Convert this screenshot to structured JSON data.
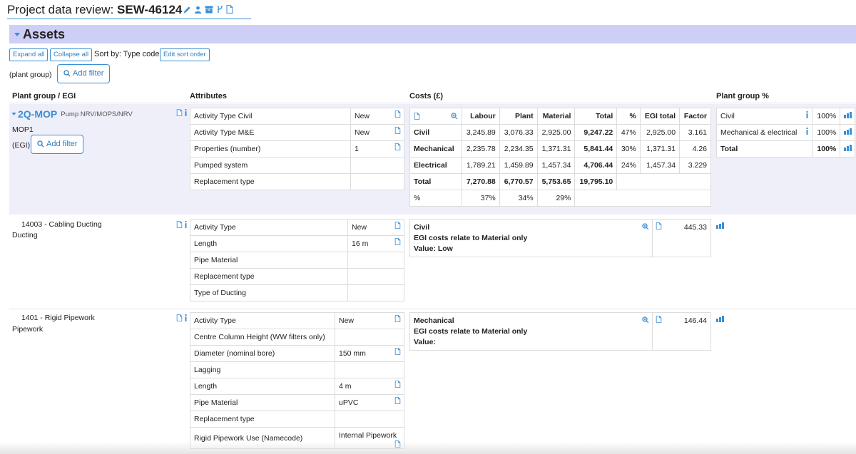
{
  "header": {
    "title_label": "Project data review:",
    "project_code": "SEW-46124",
    "icons": [
      "pencil-icon",
      "user-icon",
      "archive-icon",
      "branch-icon",
      "document-icon"
    ]
  },
  "section": {
    "title": "Assets"
  },
  "toolbar": {
    "expand_all": "Expand all",
    "collapse_all": "Collapse all",
    "sort_by_label": "Sort by: Type code",
    "edit_sort_order": "Edit sort order",
    "plant_group_filter_label": "(plant group)",
    "add_filter": "Add filter"
  },
  "columns": {
    "plant_group_egi": "Plant group / EGI",
    "attributes": "Attributes",
    "costs": "Costs (£)",
    "plant_group_pct": "Plant group %"
  },
  "groups": [
    {
      "code": "2Q-MOP",
      "description": "Pump NRV/MOPS/NRV",
      "sub_label": "MOP1",
      "egi_filter_label": "(EGI)",
      "add_filter": "Add filter",
      "attributes": [
        {
          "name": "Activity Type Civil",
          "value": "New"
        },
        {
          "name": "Activity Type M&E",
          "value": "New"
        },
        {
          "name": "Properties (number)",
          "value": "1"
        },
        {
          "name": "Pumped system",
          "value": ""
        },
        {
          "name": "Replacement type",
          "value": ""
        }
      ],
      "costs": {
        "headers": [
          "Labour",
          "Plant",
          "Material",
          "Total",
          "%",
          "EGI total",
          "Factor"
        ],
        "rows": [
          {
            "label": "Civil",
            "labour": "3,245.89",
            "plant": "3,076.33",
            "material": "2,925.00",
            "total": "9,247.22",
            "pct": "47%",
            "egi_total": "2,925.00",
            "factor": "3.161"
          },
          {
            "label": "Mechanical",
            "labour": "2,235.78",
            "plant": "2,234.35",
            "material": "1,371.31",
            "total": "5,841.44",
            "pct": "30%",
            "egi_total": "1,371.31",
            "factor": "4.26"
          },
          {
            "label": "Electrical",
            "labour": "1,789.21",
            "plant": "1,459.89",
            "material": "1,457.34",
            "total": "4,706.44",
            "pct": "24%",
            "egi_total": "1,457.34",
            "factor": "3.229"
          }
        ],
        "total": {
          "label": "Total",
          "labour": "7,270.88",
          "plant": "6,770.57",
          "material": "5,753.65",
          "total": "19,795.10"
        },
        "percent": {
          "label": "%",
          "labour": "37%",
          "plant": "34%",
          "material": "29%"
        }
      },
      "plant_group_pct": [
        {
          "name": "Civil",
          "value": "100%"
        },
        {
          "name": "Mechanical & electrical",
          "value": "100%"
        },
        {
          "name": "Total",
          "value": "100%"
        }
      ]
    }
  ],
  "items": [
    {
      "title": "14003 - Cabling Ducting",
      "subtitle": "Ducting",
      "attributes": [
        {
          "name": "Activity Type",
          "value": "New"
        },
        {
          "name": "Length",
          "value": "16 m"
        },
        {
          "name": "Pipe Material",
          "value": ""
        },
        {
          "name": "Replacement type",
          "value": ""
        },
        {
          "name": "Type of Ducting",
          "value": ""
        }
      ],
      "cost_note": {
        "group": "Civil",
        "line": "EGI costs relate to Material only",
        "value_line": "Value: Low"
      },
      "cost_value": "445.33"
    },
    {
      "title": "1401 - Rigid Pipework",
      "subtitle": "Pipework",
      "attributes": [
        {
          "name": "Activity Type",
          "value": "New"
        },
        {
          "name": "Centre Column Height (WW filters only)",
          "value": ""
        },
        {
          "name": "Diameter (nominal bore)",
          "value": "150 mm"
        },
        {
          "name": "Lagging",
          "value": ""
        },
        {
          "name": "Length",
          "value": "4 m"
        },
        {
          "name": "Pipe Material",
          "value": "uPVC"
        },
        {
          "name": "Replacement type",
          "value": ""
        },
        {
          "name": "Rigid Pipework Use (Namecode)",
          "value": "Internal Pipework"
        }
      ],
      "cost_note": {
        "group": "Mechanical",
        "line": "EGI costs relate to Material only",
        "value_line": "Value:"
      },
      "cost_value": "146.44"
    }
  ],
  "colors": {
    "accent": "#3a8fd6",
    "section_bg": "#cdcff7",
    "row_bg": "#efeffa"
  }
}
